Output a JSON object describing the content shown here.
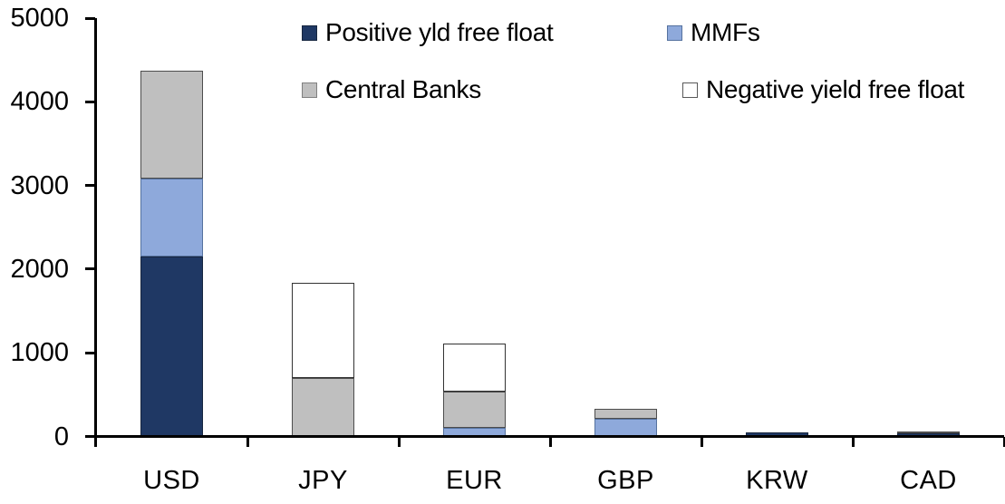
{
  "chart_data": {
    "type": "bar",
    "stacked": true,
    "title": "",
    "xlabel": "",
    "ylabel": "",
    "categories": [
      "USD",
      "JPY",
      "EUR",
      "GBP",
      "KRW",
      "CAD"
    ],
    "series": [
      {
        "name": "Positive yld free float",
        "color": "#1F3864",
        "border": "#17263F",
        "values": [
          2150,
          0,
          0,
          0,
          50,
          35
        ]
      },
      {
        "name": "MMFs",
        "color": "#8EA9DB",
        "border": "#55729F",
        "values": [
          930,
          0,
          100,
          215,
          0,
          0
        ]
      },
      {
        "name": "Central Banks",
        "color": "#BFBFBF",
        "border": "#4D4D4D",
        "values": [
          1290,
          700,
          440,
          115,
          0,
          30
        ]
      },
      {
        "name": "Negative yield free float",
        "color": "#FFFFFF",
        "border": "#333333",
        "values": [
          0,
          1140,
          575,
          0,
          0,
          0
        ]
      }
    ],
    "totals": [
      4370,
      1840,
      1115,
      330,
      50,
      65
    ],
    "ylim": [
      0,
      5000
    ],
    "yticks": [
      0,
      1000,
      2000,
      3000,
      4000,
      5000
    ],
    "grid": false,
    "legend_position": "top"
  },
  "legend": {
    "items": [
      {
        "label": "Positive yld free float",
        "color": "#1F3864",
        "border": "#17263F"
      },
      {
        "label": "MMFs",
        "color": "#8EA9DB",
        "border": "#55729F"
      },
      {
        "label": "Central Banks",
        "color": "#BFBFBF",
        "border": "#808080"
      },
      {
        "label": "Negative yield free float",
        "color": "#FFFFFF",
        "border": "#595959"
      }
    ]
  },
  "colors": {
    "background": "#FFFFFF",
    "axis": "#000000",
    "text": "#000000"
  }
}
